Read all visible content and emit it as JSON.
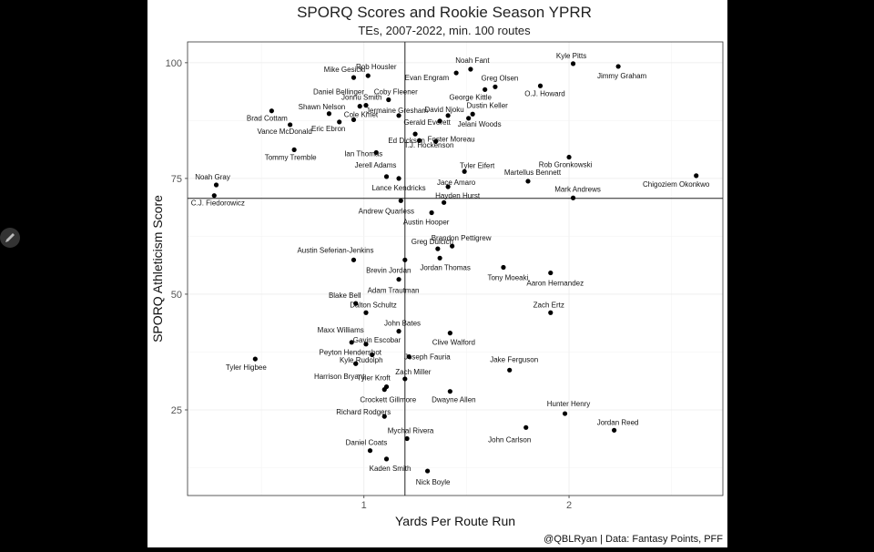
{
  "chart_data": {
    "type": "scatter",
    "title": "SPORQ Scores and Rookie Season YPRR",
    "subtitle": "TEs, 2007-2022, min. 100 routes",
    "xlabel": "Yards Per Route Run",
    "ylabel": "SPORQ Athleticism Score",
    "caption": "@QBLRyan | Data: Fantasy Points, PFF",
    "xlim": [
      0.14,
      2.75
    ],
    "ylim": [
      6.5,
      104.5
    ],
    "xticks": [
      1,
      2
    ],
    "yticks": [
      25,
      50,
      75,
      100
    ],
    "grid": true,
    "reference_lines": {
      "x": 1.2,
      "y": 70.7
    },
    "points": [
      {
        "name": "Kyle Pitts",
        "x": 2.02,
        "y": 99.8
      },
      {
        "name": "Jimmy Graham",
        "x": 2.24,
        "y": 99.2
      },
      {
        "name": "Noah Fant",
        "x": 1.52,
        "y": 98.6
      },
      {
        "name": "Evan Engram",
        "x": 1.45,
        "y": 97.8
      },
      {
        "name": "Mike Gesicki",
        "x": 0.95,
        "y": 96.8
      },
      {
        "name": "Rob Housler",
        "x": 1.02,
        "y": 97.2
      },
      {
        "name": "Greg Olsen",
        "x": 1.64,
        "y": 94.8
      },
      {
        "name": "O.J. Howard",
        "x": 1.86,
        "y": 95.0
      },
      {
        "name": "George Kittle",
        "x": 1.59,
        "y": 94.2
      },
      {
        "name": "Coby Fleener",
        "x": 1.12,
        "y": 92.0
      },
      {
        "name": "Jonnu Smith",
        "x": 0.98,
        "y": 90.6
      },
      {
        "name": "Daniel Bellinger",
        "x": 1.01,
        "y": 90.8
      },
      {
        "name": "Jermaine Gresham",
        "x": 1.17,
        "y": 88.6
      },
      {
        "name": "David Njoku",
        "x": 1.41,
        "y": 88.6
      },
      {
        "name": "Dustin Keller",
        "x": 1.53,
        "y": 88.9
      },
      {
        "name": "Shawn Nelson",
        "x": 0.83,
        "y": 89.0
      },
      {
        "name": "Brad Cottam",
        "x": 0.55,
        "y": 89.6
      },
      {
        "name": "Cole Kmet",
        "x": 0.95,
        "y": 87.7
      },
      {
        "name": "Jelani Woods",
        "x": 1.51,
        "y": 88.0
      },
      {
        "name": "Gerald Everett",
        "x": 1.37,
        "y": 87.4
      },
      {
        "name": "Eric Ebron",
        "x": 0.88,
        "y": 87.2
      },
      {
        "name": "Vance McDonald",
        "x": 0.64,
        "y": 86.6
      },
      {
        "name": "T.J. Hockenson",
        "x": 1.25,
        "y": 84.6
      },
      {
        "name": "Ed Dickson",
        "x": 1.27,
        "y": 83.2
      },
      {
        "name": "Foster Moreau",
        "x": 1.35,
        "y": 83.0
      },
      {
        "name": "Tommy Tremble",
        "x": 0.66,
        "y": 81.2
      },
      {
        "name": "Ian Thomas",
        "x": 1.06,
        "y": 80.6
      },
      {
        "name": "Rob Gronkowski",
        "x": 2.0,
        "y": 79.6
      },
      {
        "name": "Tyler Eifert",
        "x": 1.49,
        "y": 76.5
      },
      {
        "name": "Jerell Adams",
        "x": 1.11,
        "y": 75.4
      },
      {
        "name": "Lance Kendricks",
        "x": 1.17,
        "y": 75.0
      },
      {
        "name": "Martellus Bennett",
        "x": 1.8,
        "y": 74.4
      },
      {
        "name": "Chigoziem Okonkwo",
        "x": 2.62,
        "y": 75.6
      },
      {
        "name": "Noah Gray",
        "x": 0.28,
        "y": 73.6
      },
      {
        "name": "Jace Amaro",
        "x": 1.41,
        "y": 73.2
      },
      {
        "name": "Mark Andrews",
        "x": 2.02,
        "y": 70.8
      },
      {
        "name": "C.J. Fiedorowicz",
        "x": 0.27,
        "y": 71.3
      },
      {
        "name": "Hayden Hurst",
        "x": 1.39,
        "y": 69.8
      },
      {
        "name": "Andrew Quarless",
        "x": 1.18,
        "y": 70.2
      },
      {
        "name": "Austin Hooper",
        "x": 1.33,
        "y": 67.6
      },
      {
        "name": "Greg Dulcich",
        "x": 1.36,
        "y": 59.8
      },
      {
        "name": "Brandon Pettigrew",
        "x": 1.43,
        "y": 60.4
      },
      {
        "name": "Jordan Thomas",
        "x": 1.37,
        "y": 57.8
      },
      {
        "name": "Austin Seferian-Jenkins",
        "x": 0.95,
        "y": 57.4
      },
      {
        "name": "Brevin Jordan",
        "x": 1.2,
        "y": 57.4
      },
      {
        "name": "Tony Moeaki",
        "x": 1.68,
        "y": 55.8
      },
      {
        "name": "Aaron Hernandez",
        "x": 1.91,
        "y": 54.6
      },
      {
        "name": "Adam Trautman",
        "x": 1.17,
        "y": 53.2
      },
      {
        "name": "Blake Bell",
        "x": 0.96,
        "y": 48.0
      },
      {
        "name": "Dalton Schultz",
        "x": 1.01,
        "y": 46.0
      },
      {
        "name": "Zach Ertz",
        "x": 1.91,
        "y": 46.0
      },
      {
        "name": "John Bates",
        "x": 1.17,
        "y": 42.0
      },
      {
        "name": "Clive Walford",
        "x": 1.42,
        "y": 41.6
      },
      {
        "name": "Maxx Williams",
        "x": 0.94,
        "y": 39.6
      },
      {
        "name": "Gavin Escobar",
        "x": 1.01,
        "y": 39.2
      },
      {
        "name": "Peyton Hendershot",
        "x": 1.04,
        "y": 36.9
      },
      {
        "name": "Tyler Higbee",
        "x": 0.47,
        "y": 36.0
      },
      {
        "name": "Joseph Fauria",
        "x": 1.22,
        "y": 36.5
      },
      {
        "name": "Kyle Rudolph",
        "x": 0.96,
        "y": 35.0
      },
      {
        "name": "Harrison Bryant",
        "x": 0.96,
        "y": 35.0
      },
      {
        "name": "Jake Ferguson",
        "x": 1.71,
        "y": 33.6
      },
      {
        "name": "Zach Miller",
        "x": 1.2,
        "y": 31.7
      },
      {
        "name": "Tyler Kroft",
        "x": 1.11,
        "y": 30.0
      },
      {
        "name": "Crockett Gillmore",
        "x": 1.1,
        "y": 29.4
      },
      {
        "name": "Dwayne Allen",
        "x": 1.42,
        "y": 29.0
      },
      {
        "name": "Hunter Henry",
        "x": 1.98,
        "y": 24.2
      },
      {
        "name": "Richard Rodgers",
        "x": 1.1,
        "y": 23.6
      },
      {
        "name": "John Carlson",
        "x": 1.79,
        "y": 21.2
      },
      {
        "name": "Jordan Reed",
        "x": 2.22,
        "y": 20.6
      },
      {
        "name": "Mychal Rivera",
        "x": 1.21,
        "y": 18.8
      },
      {
        "name": "Daniel Coats",
        "x": 1.03,
        "y": 16.2
      },
      {
        "name": "Kaden Smith",
        "x": 1.11,
        "y": 14.4
      },
      {
        "name": "Nick Boyle",
        "x": 1.31,
        "y": 11.8
      }
    ]
  }
}
